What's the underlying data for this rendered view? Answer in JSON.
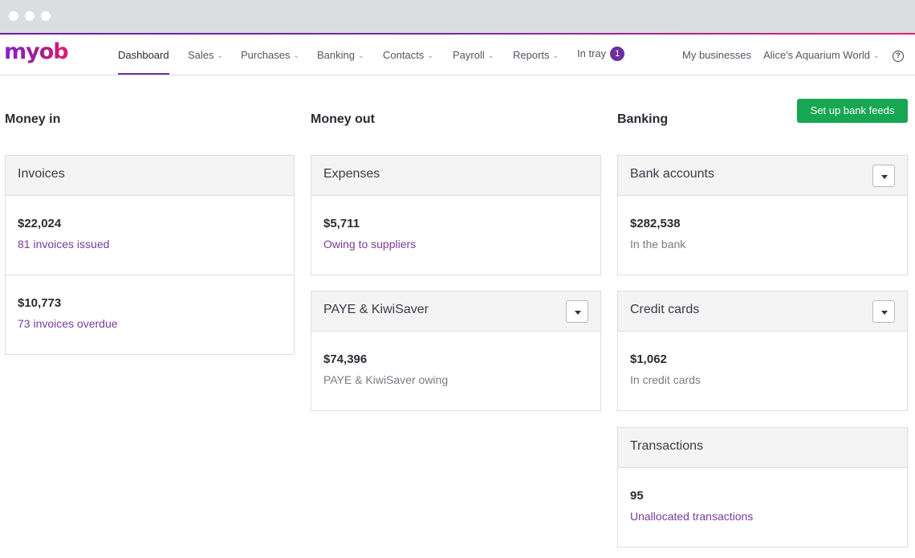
{
  "nav": {
    "logo": "myob",
    "items": [
      {
        "label": "Dashboard"
      },
      {
        "label": "Sales"
      },
      {
        "label": "Purchases"
      },
      {
        "label": "Banking"
      },
      {
        "label": "Contacts"
      },
      {
        "label": "Payroll"
      },
      {
        "label": "Reports"
      },
      {
        "label": "In tray",
        "badge": "1"
      }
    ],
    "my_businesses": "My businesses",
    "business": "Alice's Aquarium World",
    "help": "?"
  },
  "sections": {
    "money_in": "Money in",
    "money_out": "Money out",
    "banking": "Banking",
    "set_up_bank_feeds": "Set up bank feeds"
  },
  "cards": {
    "invoices": {
      "title": "Invoices",
      "rows": [
        {
          "amount": "$22,024",
          "label": "81 invoices issued"
        },
        {
          "amount": "$10,773",
          "label": "73 invoices overdue"
        }
      ]
    },
    "expenses": {
      "title": "Expenses",
      "rows": [
        {
          "amount": "$5,711",
          "label": "Owing to suppliers"
        }
      ]
    },
    "paye": {
      "title": "PAYE & KiwiSaver",
      "rows": [
        {
          "amount": "$74,396",
          "label": "PAYE & KiwiSaver owing"
        }
      ]
    },
    "bank_accounts": {
      "title": "Bank accounts",
      "rows": [
        {
          "amount": "$282,538",
          "label": "In the bank"
        }
      ]
    },
    "credit_cards": {
      "title": "Credit cards",
      "rows": [
        {
          "amount": "$1,062",
          "label": "In credit cards"
        }
      ]
    },
    "transactions": {
      "title": "Transactions",
      "rows": [
        {
          "amount": "95",
          "label": "Unallocated transactions"
        }
      ]
    }
  },
  "colors": {
    "accent_purple": "#6b2fa0",
    "link_purple": "#7a3a98",
    "button_green": "#17a752"
  }
}
